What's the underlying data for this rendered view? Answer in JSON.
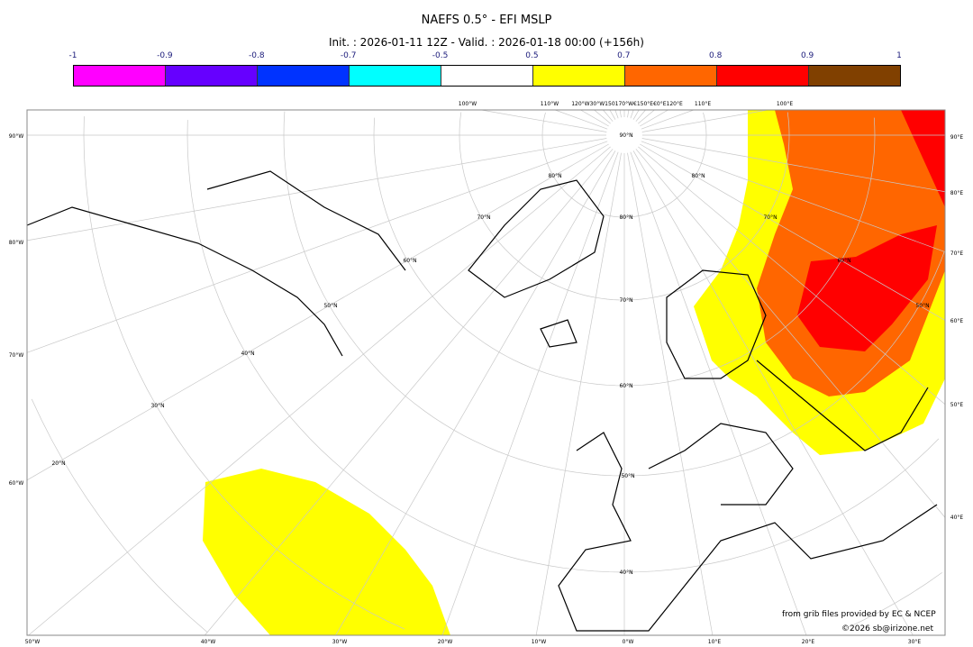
{
  "title": "NAEFS 0.5° - EFI MSLP",
  "subtitle": "Init. : 2026-01-11 12Z - Valid. : 2026-01-18 00:00 (+156h)",
  "colorbar": {
    "ticks": [
      "-1",
      "-0.9",
      "-0.8",
      "-0.7",
      "-0.5",
      "0.5",
      "0.7",
      "0.8",
      "0.9",
      "1"
    ],
    "colors": [
      "#ff00ff",
      "#6600ff",
      "#0033ff",
      "#00ffff",
      "#ffffff",
      "#ffff00",
      "#ff6600",
      "#ff0000",
      "#804000"
    ]
  },
  "map": {
    "top_labels": [
      "100°W",
      "110°W",
      "120°W30°W150170°W€150°E€0°E120°E",
      "110°E",
      "100°E"
    ],
    "left_labels": [
      "90°W",
      "80°W",
      "70°W",
      "60°W"
    ],
    "right_labels": [
      "90°E",
      "80°E",
      "70°E",
      "60°E",
      "50°E",
      "40°E"
    ],
    "bottom_labels": [
      "50°W",
      "40°W",
      "30°W",
      "20°W",
      "10°W",
      "0°W",
      "10°E",
      "20°E",
      "30°E"
    ],
    "lat_labels": [
      "90°N",
      "80°N",
      "70°N",
      "60°N",
      "50°N",
      "40°N",
      "30°N",
      "20°N"
    ],
    "lat_labels_center": [
      "80°N",
      "70°N",
      "60°N",
      "50°N",
      "40°N"
    ],
    "lat_labels_east": [
      "80°N",
      "70°N",
      "60°N",
      "50°N"
    ]
  },
  "credits": {
    "line1": "from grib files provided by EC & NCEP",
    "line2": "©2026 sb@irizone.net"
  }
}
